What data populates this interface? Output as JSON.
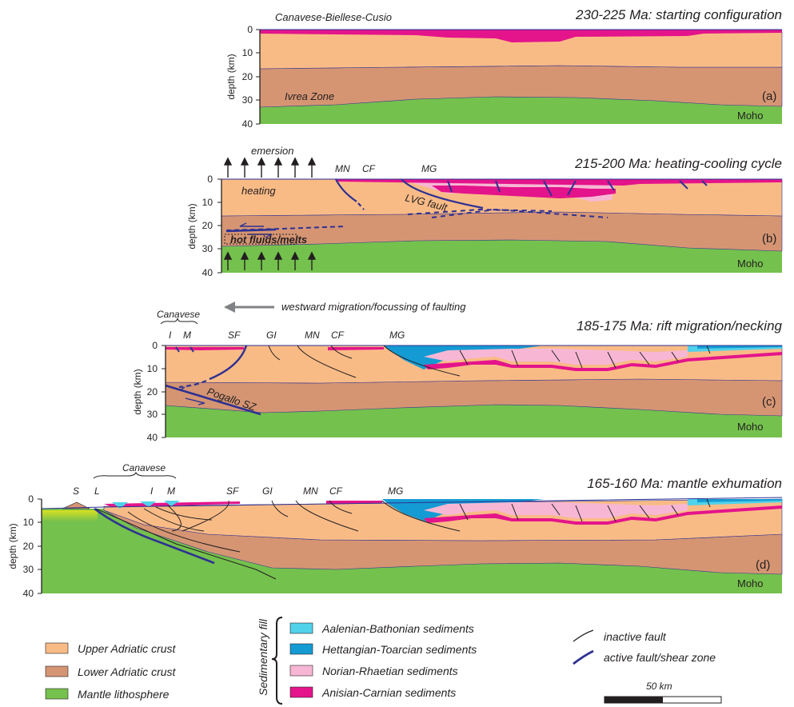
{
  "colors": {
    "upper_crust": "#f9bb86",
    "lower_crust": "#d59573",
    "mantle": "#74c14d",
    "aalenian": "#4fd2ea",
    "hettangian": "#149bd3",
    "norian": "#f7b7d4",
    "anisian": "#e4148b",
    "active_fault": "#2e3192",
    "inactive_fault": "#231f20"
  },
  "panels": {
    "a": {
      "title": "230-225 Ma: starting configuration",
      "letter": "(a)",
      "header_label": "Canavese-Biellese-Cusio",
      "ivrea_label": "Ivrea Zone",
      "moho_label": "Moho"
    },
    "b": {
      "title": "215-200 Ma: heating-cooling cycle",
      "letter": "(b)",
      "emersion": "emersion",
      "heating": "heating",
      "hot_fluids": "hot fluids/melts",
      "lvg": "LVG fault",
      "mn": "MN",
      "cf": "CF",
      "mg": "MG",
      "moho_label": "Moho"
    },
    "c": {
      "title": "185-175 Ma: rift migration/necking",
      "letter": "(c)",
      "migration": "westward migration/focussing of faulting",
      "canavese": "Canavese",
      "i": "I",
      "m": "M",
      "sf": "SF",
      "gi": "GI",
      "mn": "MN",
      "cf": "CF",
      "mg": "MG",
      "pogallo": "Pogallo SZ",
      "moho_label": "Moho"
    },
    "d": {
      "title": "165-160 Ma: mantle exhumation",
      "letter": "(d)",
      "canavese": "Canavese",
      "s": "S",
      "l": "L",
      "i": "I",
      "m": "M",
      "sf": "SF",
      "gi": "GI",
      "mn": "MN",
      "cf": "CF",
      "mg": "MG",
      "moho_label": "Moho"
    }
  },
  "axis": {
    "ylabel": "depth (km)",
    "ticks": [
      "0",
      "10",
      "20",
      "30",
      "40"
    ]
  },
  "legend": {
    "upper": "Upper Adriatic crust",
    "lower": "Lower Adriatic crust",
    "mantle": "Mantle lithosphere",
    "sed_fill": "Sedimentary fill",
    "aalenian": "Aalenian-Bathonian sediments",
    "hettangian": "Hettangian-Toarcian sediments",
    "norian": "Norian-Rhaetian sediments",
    "anisian": "Anisian-Carnian sediments",
    "inactive": "inactive fault",
    "active": "active fault/shear zone",
    "scale": "50 km"
  }
}
